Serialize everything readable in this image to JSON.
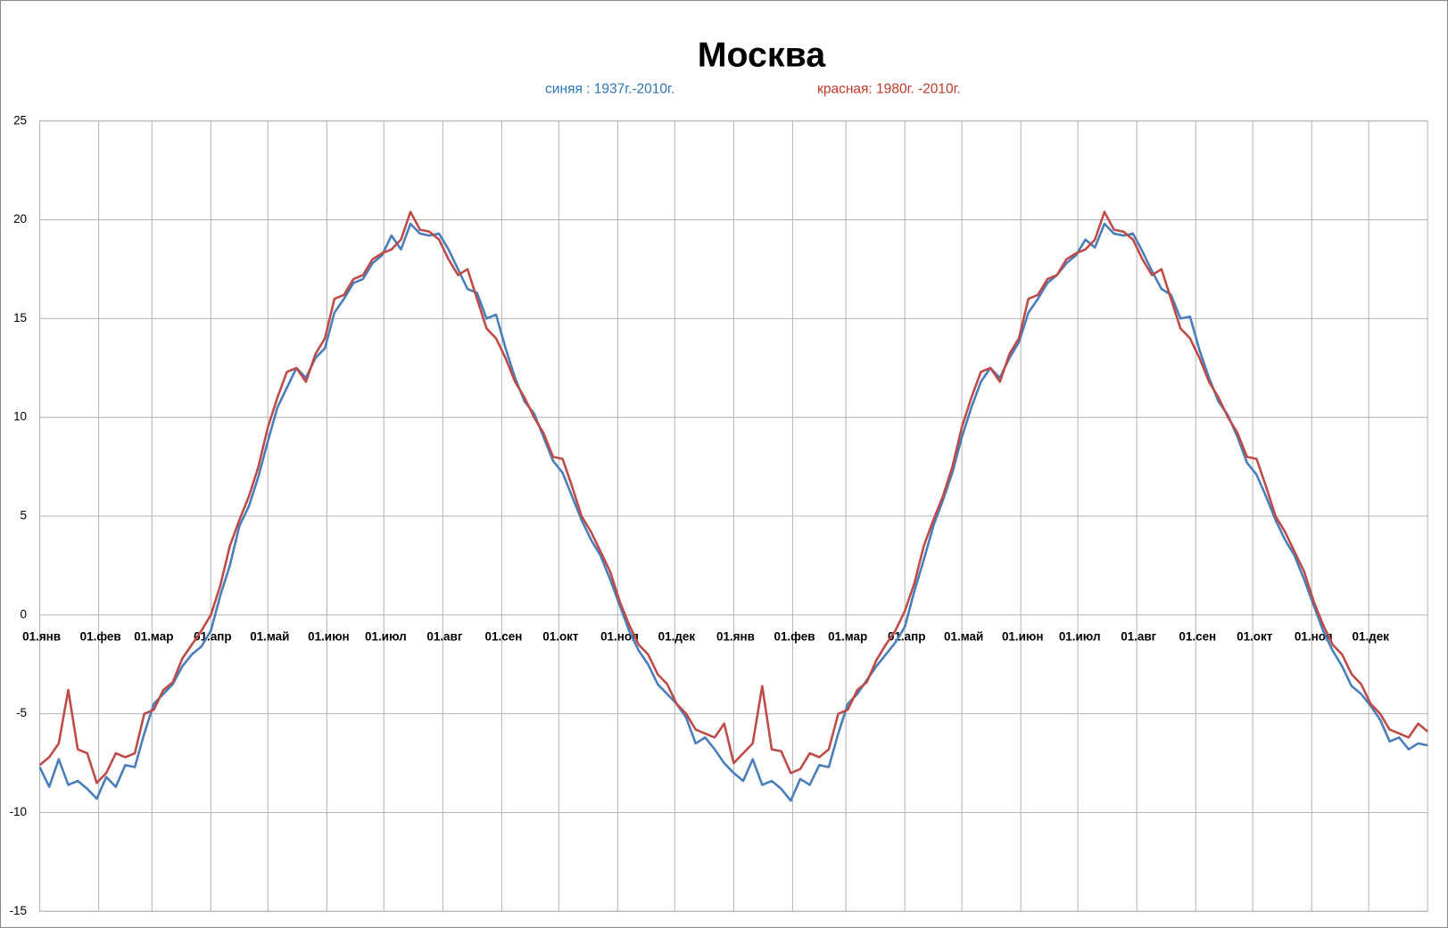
{
  "chart_data": {
    "type": "line",
    "title": "Москва",
    "subtitles": [
      {
        "text": "синяя :  1937г.-2010г.",
        "color": "#2e75b6"
      },
      {
        "text": "красная: 1980г. -2010г.",
        "color": "#c0392b"
      }
    ],
    "xlim": [
      0,
      730
    ],
    "xticks": [
      {
        "value": 0,
        "label": "01.янв"
      },
      {
        "value": 31,
        "label": "01.фев"
      },
      {
        "value": 59,
        "label": "01.мар"
      },
      {
        "value": 90,
        "label": "01.апр"
      },
      {
        "value": 120,
        "label": "01.май"
      },
      {
        "value": 151,
        "label": "01.июн"
      },
      {
        "value": 181,
        "label": "01.июл"
      },
      {
        "value": 212,
        "label": "01.авг"
      },
      {
        "value": 243,
        "label": "01.сен"
      },
      {
        "value": 273,
        "label": "01.окт"
      },
      {
        "value": 304,
        "label": "01.ноя"
      },
      {
        "value": 334,
        "label": "01.дек"
      },
      {
        "value": 365,
        "label": "01.янв"
      },
      {
        "value": 396,
        "label": "01.фев"
      },
      {
        "value": 424,
        "label": "01.мар"
      },
      {
        "value": 455,
        "label": "01.апр"
      },
      {
        "value": 485,
        "label": "01.май"
      },
      {
        "value": 516,
        "label": "01.июн"
      },
      {
        "value": 546,
        "label": "01.июл"
      },
      {
        "value": 577,
        "label": "01.авг"
      },
      {
        "value": 608,
        "label": "01.сен"
      },
      {
        "value": 638,
        "label": "01.окт"
      },
      {
        "value": 669,
        "label": "01.ноя"
      },
      {
        "value": 699,
        "label": "01.дек"
      }
    ],
    "ylim": [
      -15,
      25
    ],
    "yticks": [
      -15,
      -10,
      -5,
      0,
      5,
      10,
      15,
      20,
      25
    ],
    "grid": true,
    "x": [
      0,
      5,
      10,
      15,
      20,
      25,
      30,
      35,
      40,
      45,
      50,
      55,
      60,
      65,
      70,
      75,
      80,
      85,
      90,
      95,
      100,
      105,
      110,
      115,
      120,
      125,
      130,
      135,
      140,
      145,
      150,
      155,
      160,
      165,
      170,
      175,
      180,
      185,
      190,
      195,
      200,
      205,
      210,
      215,
      220,
      225,
      230,
      235,
      240,
      245,
      250,
      255,
      260,
      265,
      270,
      275,
      280,
      285,
      290,
      295,
      300,
      305,
      310,
      315,
      320,
      325,
      330,
      335,
      340,
      345,
      350,
      355,
      360,
      365,
      370,
      375,
      380,
      385,
      390,
      395,
      400,
      405,
      410,
      415,
      420,
      425,
      430,
      435,
      440,
      445,
      450,
      455,
      460,
      465,
      470,
      475,
      480,
      485,
      490,
      495,
      500,
      505,
      510,
      515,
      520,
      525,
      530,
      535,
      540,
      545,
      550,
      555,
      560,
      565,
      570,
      575,
      580,
      585,
      590,
      595,
      600,
      605,
      610,
      615,
      620,
      625,
      630,
      635,
      640,
      645,
      650,
      655,
      660,
      665,
      670,
      675,
      680,
      685,
      690,
      695,
      700,
      705,
      710,
      715,
      720,
      725,
      730
    ],
    "series": [
      {
        "color": "#4a7ebb",
        "values": [
          -7.7,
          -8.7,
          -7.3,
          -8.6,
          -8.4,
          -8.8,
          -9.3,
          -8.2,
          -8.7,
          -7.6,
          -7.7,
          -6.0,
          -4.5,
          -4.0,
          -3.5,
          -2.6,
          -2.0,
          -1.6,
          -0.8,
          1.0,
          2.5,
          4.5,
          5.5,
          7.0,
          8.8,
          10.5,
          11.5,
          12.5,
          12.0,
          13.0,
          13.5,
          15.3,
          16.0,
          16.8,
          17.0,
          17.8,
          18.2,
          19.2,
          18.5,
          19.8,
          19.3,
          19.2,
          19.3,
          18.5,
          17.5,
          16.5,
          16.3,
          15.0,
          15.2,
          13.5,
          12.0,
          10.8,
          10.2,
          9.0,
          7.8,
          7.2,
          6.0,
          4.8,
          3.8,
          3.0,
          1.8,
          0.5,
          -0.8,
          -1.8,
          -2.5,
          -3.5,
          -4.0,
          -4.5,
          -5.2,
          -6.5,
          -6.2,
          -6.8,
          -7.5,
          -8.0,
          -8.4,
          -7.3,
          -8.6,
          -8.4,
          -8.8,
          -9.4,
          -8.3,
          -8.6,
          -7.6,
          -7.7,
          -6.0,
          -4.5,
          -4.0,
          -3.3,
          -2.6,
          -2.0,
          -1.4,
          -0.6,
          1.2,
          2.8,
          4.5,
          5.8,
          7.2,
          9.0,
          10.5,
          11.8,
          12.5,
          12.0,
          13.0,
          13.8,
          15.3,
          16.0,
          16.8,
          17.2,
          17.8,
          18.2,
          19.0,
          18.6,
          19.8,
          19.3,
          19.2,
          19.3,
          18.4,
          17.4,
          16.5,
          16.2,
          15.0,
          15.1,
          13.4,
          12.0,
          10.8,
          10.1,
          9.0,
          7.7,
          7.1,
          6.0,
          4.8,
          3.8,
          3.0,
          1.8,
          0.5,
          -0.8,
          -1.8,
          -2.6,
          -3.6,
          -4.0,
          -4.6,
          -5.3,
          -6.4,
          -6.2,
          -6.8,
          -6.5,
          -6.6
        ]
      },
      {
        "color": "#be4b48",
        "values": [
          -7.6,
          -7.2,
          -6.5,
          -3.8,
          -6.8,
          -7.0,
          -8.5,
          -8.0,
          -7.0,
          -7.2,
          -7.0,
          -5.0,
          -4.8,
          -3.8,
          -3.4,
          -2.2,
          -1.5,
          -0.8,
          0.0,
          1.5,
          3.5,
          4.8,
          6.0,
          7.5,
          9.5,
          11.0,
          12.3,
          12.5,
          11.8,
          13.2,
          14.0,
          16.0,
          16.2,
          17.0,
          17.2,
          18.0,
          18.3,
          18.5,
          19.0,
          20.4,
          19.5,
          19.4,
          19.0,
          18.0,
          17.2,
          17.5,
          16.0,
          14.5,
          14.0,
          13.0,
          11.8,
          11.0,
          10.0,
          9.2,
          8.0,
          7.9,
          6.5,
          5.0,
          4.2,
          3.2,
          2.2,
          0.7,
          -0.5,
          -1.5,
          -2.0,
          -3.0,
          -3.5,
          -4.5,
          -5.0,
          -5.8,
          -6.0,
          -6.2,
          -5.5,
          -7.5,
          -7.0,
          -6.5,
          -3.6,
          -6.8,
          -6.9,
          -8.0,
          -7.8,
          -7.0,
          -7.2,
          -6.8,
          -5.0,
          -4.8,
          -3.8,
          -3.4,
          -2.3,
          -1.5,
          -0.8,
          0.2,
          1.6,
          3.5,
          4.8,
          6.0,
          7.5,
          9.5,
          11.0,
          12.3,
          12.5,
          11.8,
          13.2,
          14.0,
          16.0,
          16.2,
          17.0,
          17.2,
          18.0,
          18.3,
          18.5,
          19.0,
          20.4,
          19.5,
          19.4,
          19.0,
          18.0,
          17.2,
          17.5,
          16.0,
          14.5,
          14.0,
          13.0,
          11.8,
          11.0,
          10.0,
          9.2,
          8.0,
          7.9,
          6.5,
          5.0,
          4.2,
          3.2,
          2.2,
          0.7,
          -0.5,
          -1.5,
          -2.0,
          -3.0,
          -3.5,
          -4.5,
          -5.0,
          -5.8,
          -6.0,
          -6.2,
          -5.5,
          -5.9
        ]
      }
    ]
  }
}
